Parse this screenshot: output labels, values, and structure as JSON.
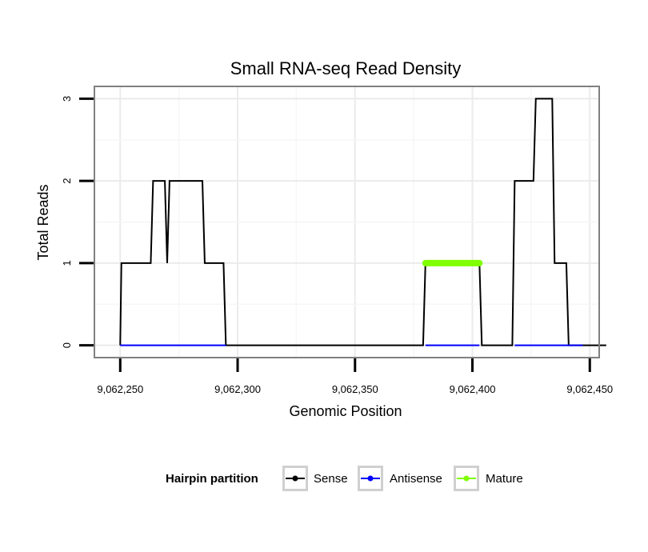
{
  "chart_data": {
    "type": "line",
    "title": "Small RNA-seq Read Density",
    "xlabel": "Genomic Position",
    "ylabel": "Total Reads",
    "xlim": [
      9062239,
      9062454
    ],
    "ylim": [
      -0.15,
      3.15
    ],
    "x_ticks": [
      9062250,
      9062300,
      9062350,
      9062400,
      9062450
    ],
    "x_tick_labels": [
      "9,062,250",
      "9,062,300",
      "9,062,350",
      "9,062,400",
      "9,062,450"
    ],
    "y_ticks": [
      0,
      1,
      2,
      3
    ],
    "y_tick_labels": [
      "0",
      "1",
      "2",
      "3"
    ],
    "grid": true,
    "legend": {
      "title": "Hairpin partition",
      "position": "bottom",
      "entries": [
        {
          "name": "Sense",
          "color": "#000000"
        },
        {
          "name": "Antisense",
          "color": "#0000ff"
        },
        {
          "name": "Mature",
          "color": "#7fff00"
        }
      ]
    },
    "series": [
      {
        "name": "Sense",
        "color": "#000000",
        "x": [
          9062250,
          9062250.5,
          9062263,
          9062264,
          9062269,
          9062270,
          9062271,
          9062285,
          9062286,
          9062294,
          9062295,
          9062379,
          9062380,
          9062403,
          9062404,
          9062417,
          9062418,
          9062426,
          9062427,
          9062434,
          9062435,
          9062440,
          9062441,
          9062446,
          9062447,
          9062457
        ],
        "y": [
          0,
          1,
          1,
          2,
          2,
          1,
          2,
          2,
          1,
          1,
          0,
          0,
          1,
          1,
          0,
          0,
          2,
          2,
          3,
          3,
          1,
          1,
          0,
          0,
          0,
          0
        ]
      },
      {
        "name": "Antisense",
        "color": "#0000ff",
        "x": [
          9062250,
          9062295
        ],
        "y": [
          0,
          0
        ]
      },
      {
        "name": "Antisense",
        "color": "#0000ff",
        "x": [
          9062380,
          9062403
        ],
        "y": [
          0,
          0
        ]
      },
      {
        "name": "Antisense",
        "color": "#0000ff",
        "x": [
          9062418,
          9062447
        ],
        "y": [
          0,
          0
        ]
      },
      {
        "name": "Mature",
        "color": "#7fff00",
        "x": [
          9062380,
          9062403
        ],
        "y": [
          1,
          1
        ]
      }
    ]
  }
}
